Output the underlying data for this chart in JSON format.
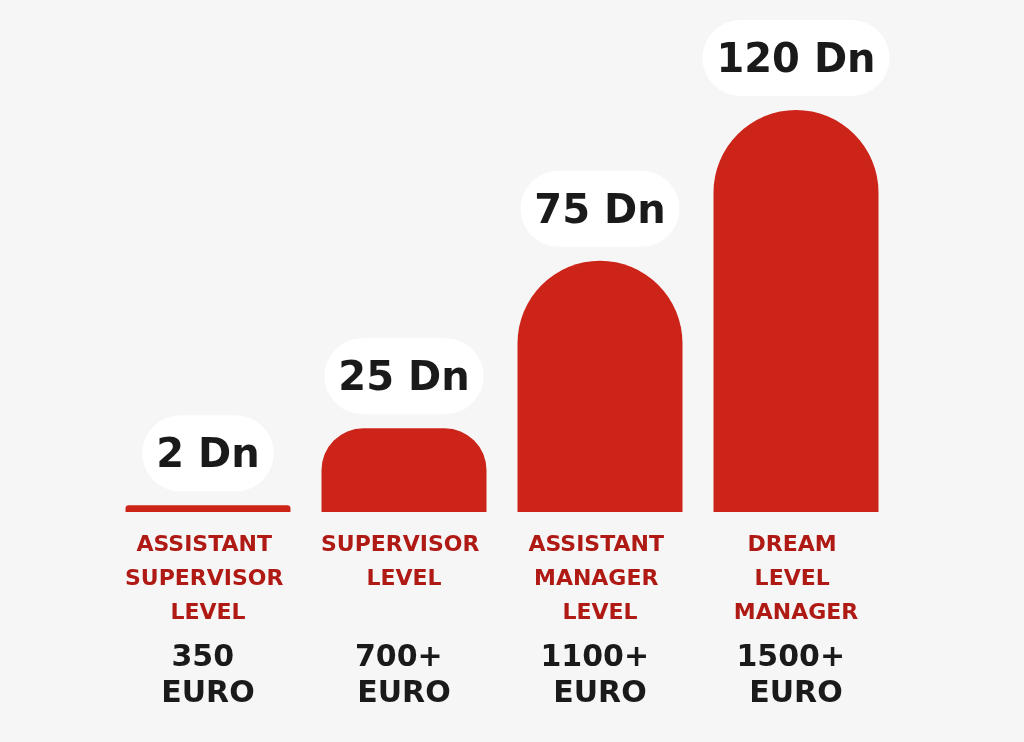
{
  "chart_data": {
    "type": "bar",
    "categories": [
      "ASSISTANT SUPERVISOR LEVEL",
      "SUPERVISOR LEVEL",
      "ASSISTANT MANAGER LEVEL",
      "DREAM LEVEL MANAGER"
    ],
    "values": [
      2,
      25,
      75,
      120
    ],
    "color": "#cc2419",
    "value_labels": [
      "2 Dn",
      "25 Dn",
      "75 Dn",
      "120 Dn"
    ],
    "annotations": [
      "350 EURO",
      "700+ EURO",
      "1100+ EURO",
      "1500+ EURO"
    ]
  }
}
